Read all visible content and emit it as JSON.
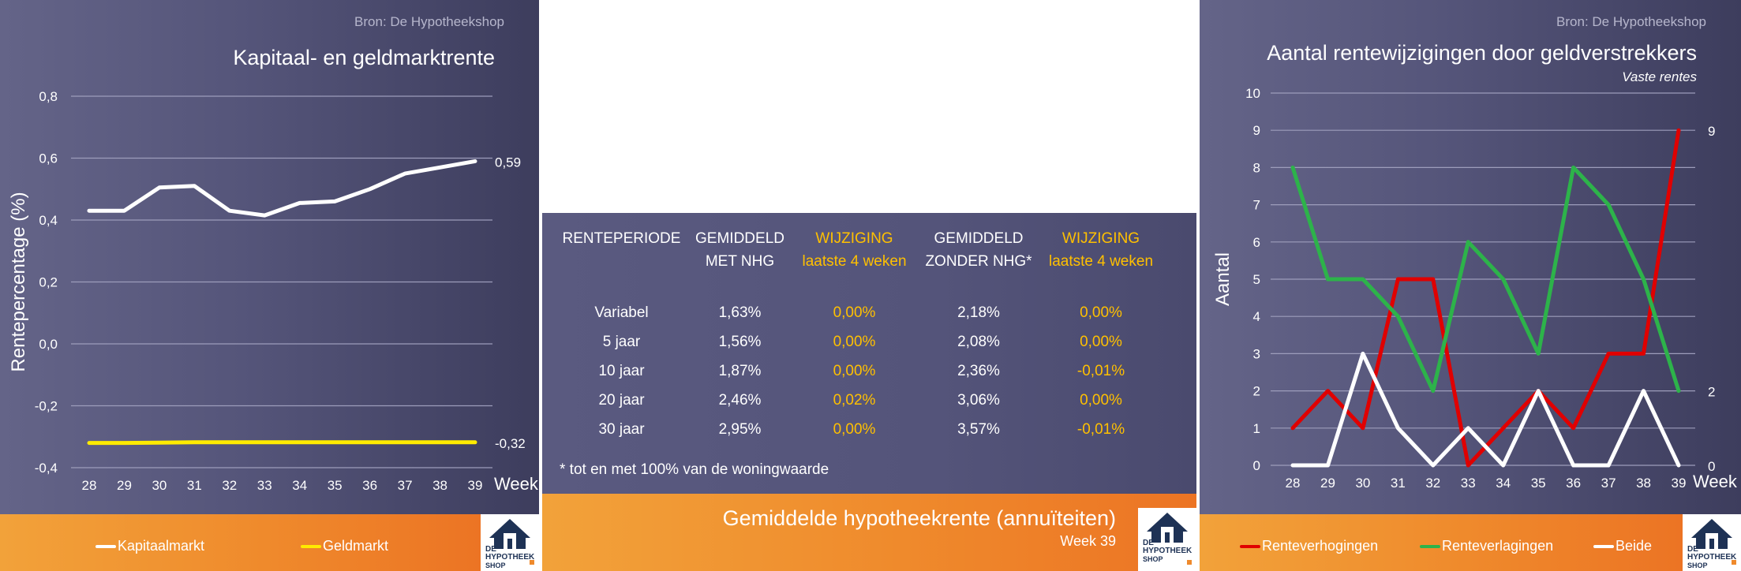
{
  "left_panel": {
    "source": "Bron: De Hypotheekshop",
    "title": "Kapitaal- en geldmarktrente",
    "legend": [
      {
        "label": "Kapitaalmarkt",
        "color": "#ffffff"
      },
      {
        "label": "Geldmarkt",
        "color": "#ffeb00"
      }
    ]
  },
  "middle_panel": {
    "headers": {
      "periode": "RENTEPERIODE",
      "gem_nhg_1": "GEMIDDELD",
      "gem_nhg_2": "MET NHG",
      "wijz1_1": "WIJZIGING",
      "wijz1_2": "laatste 4 weken",
      "gem_zonder_1": "GEMIDDELD",
      "gem_zonder_2": "ZONDER NHG*",
      "wijz2_1": "WIJZIGING",
      "wijz2_2": "laatste 4 weken"
    },
    "rows": [
      {
        "periode": "Variabel",
        "met_nhg": "1,63%",
        "wijz_met": "0,00%",
        "zonder_nhg": "2,18%",
        "wijz_zonder": "0,00%"
      },
      {
        "periode": "5 jaar",
        "met_nhg": "1,56%",
        "wijz_met": "0,00%",
        "zonder_nhg": "2,08%",
        "wijz_zonder": "0,00%"
      },
      {
        "periode": "10 jaar",
        "met_nhg": "1,87%",
        "wijz_met": "0,00%",
        "zonder_nhg": "2,36%",
        "wijz_zonder": "-0,01%"
      },
      {
        "periode": "20 jaar",
        "met_nhg": "2,46%",
        "wijz_met": "0,02%",
        "zonder_nhg": "3,06%",
        "wijz_zonder": "0,00%"
      },
      {
        "periode": "30 jaar",
        "met_nhg": "2,95%",
        "wijz_met": "0,00%",
        "zonder_nhg": "3,57%",
        "wijz_zonder": "-0,01%"
      }
    ],
    "footnote": "* tot en met 100% van de woningwaarde",
    "footer_title": "Gemiddelde hypotheekrente (annuïteiten)",
    "footer_sub": "Week 39"
  },
  "right_panel": {
    "source": "Bron: De Hypotheekshop",
    "title": "Aantal rentewijzigingen door geldverstrekkers",
    "subtitle": "Vaste rentes",
    "legend": [
      {
        "label": "Renteverhogingen",
        "color": "#e00000"
      },
      {
        "label": "Renteverlagingen",
        "color": "#2db34a"
      },
      {
        "label": "Beide",
        "color": "#ffffff"
      }
    ]
  },
  "logo": {
    "line1": "DE",
    "line2": "HYPOTHEEK",
    "line3": "SHOP"
  },
  "chart_data": [
    {
      "type": "line",
      "title": "Kapitaal- en geldmarktrente",
      "xlabel": "Week",
      "ylabel": "Rentepercentage (%)",
      "x": [
        28,
        29,
        30,
        31,
        32,
        33,
        34,
        35,
        36,
        37,
        38,
        39
      ],
      "ylim": [
        -0.4,
        0.8
      ],
      "yticks": [
        "-0,4",
        "-0,2",
        "0,0",
        "0,2",
        "0,4",
        "0,6",
        "0,8"
      ],
      "grid": true,
      "legend_position": "bottom",
      "series": [
        {
          "name": "Kapitaalmarkt",
          "color": "#ffffff",
          "values": [
            0.43,
            0.43,
            0.505,
            0.51,
            0.43,
            0.415,
            0.455,
            0.46,
            0.5,
            0.55,
            0.57,
            0.59
          ],
          "end_label": "0,59"
        },
        {
          "name": "Geldmarkt",
          "color": "#ffeb00",
          "values": [
            -0.32,
            -0.32,
            -0.319,
            -0.318,
            -0.318,
            -0.318,
            -0.318,
            -0.318,
            -0.318,
            -0.318,
            -0.318,
            -0.318
          ],
          "end_label": "-0,32"
        }
      ]
    },
    {
      "type": "line",
      "title": "Aantal rentewijzigingen door geldverstrekkers",
      "subtitle": "Vaste rentes",
      "xlabel": "Week",
      "ylabel": "Aantal",
      "x": [
        28,
        29,
        30,
        31,
        32,
        33,
        34,
        35,
        36,
        37,
        38,
        39
      ],
      "ylim": [
        0,
        10
      ],
      "yticks": [
        "0",
        "1",
        "2",
        "3",
        "4",
        "5",
        "6",
        "7",
        "8",
        "9",
        "10"
      ],
      "grid": true,
      "legend_position": "bottom",
      "series": [
        {
          "name": "Renteverhogingen",
          "color": "#e00000",
          "values": [
            1,
            2,
            1,
            5,
            5,
            0,
            1,
            2,
            1,
            3,
            3,
            9
          ],
          "end_label": "9"
        },
        {
          "name": "Renteverlagingen",
          "color": "#2db34a",
          "values": [
            8,
            5,
            5,
            4,
            2,
            6,
            5,
            3,
            8,
            7,
            5,
            2
          ],
          "end_label": "2"
        },
        {
          "name": "Beide",
          "color": "#ffffff",
          "values": [
            0,
            0,
            3,
            1,
            0,
            1,
            0,
            2,
            0,
            0,
            2,
            0
          ],
          "end_label": "0"
        }
      ]
    }
  ]
}
